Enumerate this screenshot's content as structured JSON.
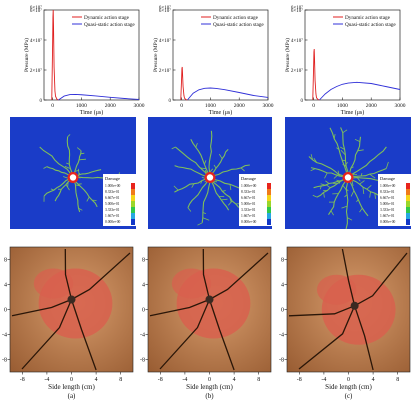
{
  "figure": {
    "panel_labels": [
      "(a)",
      "(b)",
      "(c)"
    ],
    "bottom_xlabel": "Side length (cm)",
    "bottom_ticks": [
      "-8",
      "-4",
      "0",
      "4",
      "8"
    ],
    "bottom_yticks": [
      "8",
      "4",
      "0",
      "-4",
      "-8"
    ],
    "damage_legend_title": "Damage",
    "damage_legend_values": [
      "1.000e+00",
      "8.333e-01",
      "6.667e-01",
      "5.000e-01",
      "3.333e-01",
      "1.667e-01",
      "0.000e+00"
    ],
    "damage_colors": [
      "#e8241c",
      "#f07a1a",
      "#f5d418",
      "#9ad62a",
      "#2fc94a",
      "#26a8e0",
      "#1238c8"
    ],
    "series_colors": {
      "dynamic": "#e02020",
      "quasi": "#3030d8"
    },
    "damage_bg_color": "#1a3cc8",
    "crack_color": "#7fbf5a"
  },
  "chart_data": [
    {
      "type": "line",
      "xlabel": "Time (μs)",
      "ylabel": "Pressure (MPa)",
      "y_scale_label": "6×10⁷",
      "yticks": [
        "0",
        "2×10⁷",
        "4×10⁷",
        "6×10⁷"
      ],
      "xticks": [
        "0",
        "1000",
        "2000",
        "3000"
      ],
      "xlim": [
        -300,
        3000
      ],
      "ylim": [
        0,
        60000000
      ],
      "legend": [
        "Dynamic action stage",
        "Quasi-static action stage"
      ],
      "series": [
        {
          "name": "Dynamic action stage",
          "x": [
            -30,
            0,
            10,
            20,
            30,
            50,
            80,
            100,
            150,
            200
          ],
          "values": [
            0,
            38000000,
            55000000,
            60000000,
            50000000,
            22000000,
            6000000,
            2500000,
            500000,
            0
          ]
        },
        {
          "name": "Quasi-static action stage",
          "x": [
            200,
            400,
            600,
            800,
            1000,
            1500,
            2000,
            2500,
            3000
          ],
          "values": [
            0,
            2600000,
            3600000,
            3700000,
            3500000,
            2700000,
            1800000,
            1000000,
            400000
          ]
        }
      ]
    },
    {
      "type": "line",
      "xlabel": "Time (μs)",
      "ylabel": "Pressure (MPa)",
      "y_scale_label": "6×10⁷",
      "yticks": [
        "0",
        "2×10⁷",
        "4×10⁷",
        "6×10⁷"
      ],
      "xticks": [
        "0",
        "1000",
        "2000",
        "3000"
      ],
      "xlim": [
        -300,
        3000
      ],
      "ylim": [
        0,
        60000000
      ],
      "legend": [
        "Dynamic action stage",
        "Quasi-static action stage"
      ],
      "series": [
        {
          "name": "Dynamic action stage",
          "x": [
            -30,
            0,
            10,
            20,
            30,
            50,
            80,
            100,
            150,
            200
          ],
          "values": [
            0,
            15000000,
            21000000,
            22000000,
            18000000,
            9000000,
            3000000,
            1200000,
            300000,
            0
          ]
        },
        {
          "name": "Quasi-static action stage",
          "x": [
            200,
            400,
            600,
            800,
            1000,
            1200,
            1500,
            2000,
            2500,
            3000
          ],
          "values": [
            0,
            4500000,
            6800000,
            7800000,
            8000000,
            7700000,
            6900000,
            5000000,
            3000000,
            1700000
          ]
        }
      ]
    },
    {
      "type": "line",
      "xlabel": "Time (μs)",
      "ylabel": "Pressure (MPa)",
      "y_scale_label": "6×10⁷",
      "yticks": [
        "0",
        "2×10⁷",
        "4×10⁷",
        "6×10⁷"
      ],
      "xticks": [
        "0",
        "1000",
        "2000",
        "3000"
      ],
      "xlim": [
        -300,
        3000
      ],
      "ylim": [
        0,
        60000000
      ],
      "legend": [
        "Dynamic action stage",
        "Quasi-static action stage"
      ],
      "series": [
        {
          "name": "Dynamic action stage",
          "x": [
            -30,
            0,
            10,
            20,
            30,
            50,
            80,
            100,
            150,
            200
          ],
          "values": [
            0,
            23000000,
            32000000,
            34000000,
            28000000,
            13000000,
            4000000,
            1500000,
            400000,
            0
          ]
        },
        {
          "name": "Quasi-static action stage",
          "x": [
            200,
            400,
            600,
            800,
            1000,
            1200,
            1500,
            2000,
            2500,
            3000
          ],
          "values": [
            0,
            4000000,
            7000000,
            9000000,
            10500000,
            11300000,
            11800000,
            11000000,
            9000000,
            7000000
          ]
        }
      ]
    }
  ]
}
